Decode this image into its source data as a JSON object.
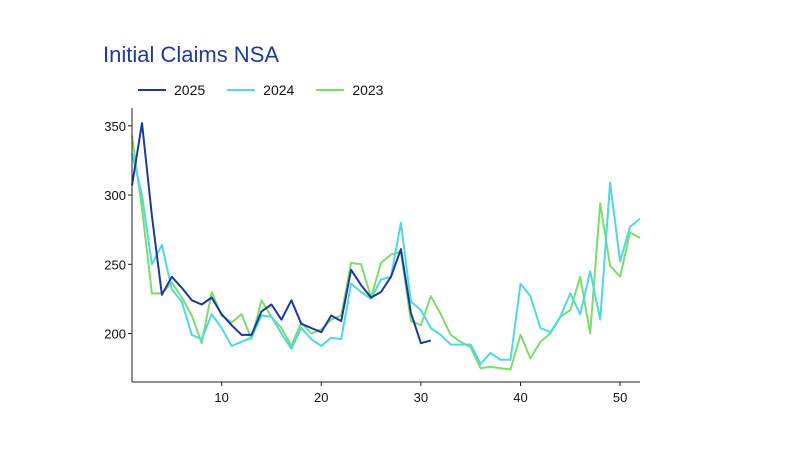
{
  "chart_data": {
    "type": "line",
    "title": "Initial Claims NSA",
    "xlabel": "",
    "ylabel": "",
    "xlim": [
      1,
      52
    ],
    "ylim": [
      165,
      360
    ],
    "x_ticks": [
      10,
      20,
      30,
      40,
      50
    ],
    "y_ticks": [
      200,
      250,
      300,
      350
    ],
    "grid": false,
    "legend_position": "top-left",
    "series": [
      {
        "name": "2025",
        "color": "#1a3a9c",
        "x": [
          1,
          2,
          3,
          4,
          5,
          6,
          7,
          8,
          9,
          10,
          11,
          12,
          13,
          14,
          15,
          16,
          17,
          18,
          19,
          20,
          21,
          22,
          23,
          24,
          25,
          26,
          27,
          28,
          29,
          30,
          31
        ],
        "values": [
          307,
          352,
          285,
          228,
          241,
          233,
          224,
          221,
          226,
          214,
          206,
          199,
          199,
          216,
          221,
          210,
          224,
          207,
          204,
          201,
          213,
          209,
          246,
          235,
          226,
          230,
          241,
          261,
          215,
          193,
          195
        ]
      },
      {
        "name": "2024",
        "color": "#4fd8e6",
        "x": [
          1,
          2,
          3,
          4,
          5,
          6,
          7,
          8,
          9,
          10,
          11,
          12,
          13,
          14,
          15,
          16,
          17,
          18,
          19,
          20,
          21,
          22,
          23,
          24,
          25,
          26,
          27,
          28,
          29,
          30,
          31,
          32,
          33,
          34,
          35,
          36,
          37,
          38,
          39,
          40,
          41,
          42,
          43,
          44,
          45,
          46,
          47,
          48,
          49,
          50,
          51,
          52
        ],
        "values": [
          330,
          300,
          250,
          264,
          232,
          223,
          199,
          196,
          214,
          204,
          191,
          194,
          197,
          213,
          212,
          200,
          189,
          204,
          196,
          191,
          197,
          196,
          236,
          230,
          225,
          239,
          241,
          280,
          223,
          217,
          204,
          199,
          192,
          192,
          192,
          178,
          186,
          181,
          181,
          236,
          227,
          204,
          201,
          212,
          229,
          214,
          245,
          210,
          309,
          252,
          277,
          283
        ]
      },
      {
        "name": "2023",
        "color": "#7ddd6a",
        "x": [
          1,
          2,
          3,
          4,
          5,
          6,
          7,
          8,
          9,
          10,
          11,
          12,
          13,
          14,
          15,
          16,
          17,
          18,
          19,
          20,
          21,
          22,
          23,
          24,
          25,
          26,
          27,
          28,
          29,
          30,
          31,
          32,
          33,
          34,
          35,
          36,
          37,
          38,
          39,
          40,
          41,
          42,
          43,
          44,
          45,
          46,
          47,
          48,
          49,
          50,
          51,
          52
        ],
        "values": [
          343,
          290,
          229,
          229,
          237,
          226,
          213,
          193,
          230,
          213,
          208,
          214,
          196,
          224,
          212,
          204,
          191,
          208,
          200,
          203,
          210,
          213,
          251,
          250,
          226,
          251,
          257,
          259,
          209,
          206,
          227,
          214,
          199,
          194,
          190,
          175,
          176,
          175,
          174,
          199,
          182,
          194,
          200,
          212,
          217,
          241,
          200,
          294,
          249,
          241,
          273,
          269
        ]
      }
    ]
  }
}
